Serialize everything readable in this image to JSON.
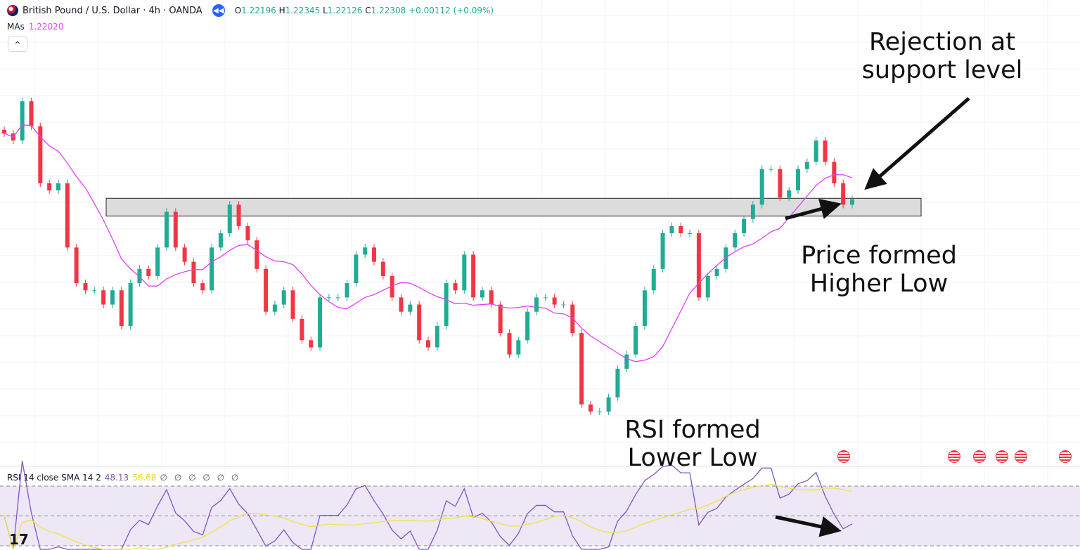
{
  "header": {
    "symbol": "British Pound / U.S. Dollar · 4h · OANDA",
    "open_label": "O",
    "open": "1.22196",
    "high_label": "H",
    "high": "1.22345",
    "low_label": "L",
    "low": "1.22126",
    "close_label": "C",
    "close": "1.22308",
    "change": "+0.00112 (+0.09%)",
    "ma_label": "MAs",
    "ma_value": "1.22020",
    "collapse_icon": "chevron-up-icon"
  },
  "rsi_legend": {
    "title": "RSI 14 close SMA 14 2",
    "rsi_value": "48.13",
    "sma_value": "56.68",
    "empty_values": "∅ ∅ ∅ ∅ ∅ ∅"
  },
  "annotations": {
    "rejection": "Rejection at support level",
    "price_hl_1": "Price formed",
    "price_hl_2": "Higher Low",
    "rsi_ll_1": "RSI formed",
    "rsi_ll_2": "Lower Low"
  },
  "colors": {
    "up": "#22ab94",
    "down": "#f23645",
    "ma": "#e040fb",
    "rsi": "#7e57c2",
    "rsi_sma": "#f0e442",
    "rsi_band": "#ede7f6",
    "zone": "#dcdcdc"
  },
  "chart_data": {
    "type": "candlestick",
    "ylim": [
      1.186,
      1.251
    ],
    "closes": [
      1.2323,
      1.2313,
      1.2368,
      1.2333,
      1.2253,
      1.2243,
      1.2253,
      1.2163,
      1.2113,
      1.2103,
      1.2103,
      1.2083,
      1.2103,
      1.2053,
      1.2113,
      1.2133,
      1.2123,
      1.2163,
      1.2213,
      1.2163,
      1.2143,
      1.2113,
      1.2103,
      1.2163,
      1.2183,
      1.2223,
      1.2193,
      1.2173,
      1.2133,
      1.2073,
      1.2083,
      1.2103,
      1.2063,
      1.2033,
      1.2023,
      1.2093,
      1.2093,
      1.2093,
      1.2113,
      1.2153,
      1.2163,
      1.2143,
      1.2123,
      1.2093,
      1.2073,
      1.2083,
      1.2033,
      1.2023,
      1.2053,
      1.2113,
      1.2103,
      1.2153,
      1.2093,
      1.2103,
      1.2083,
      1.2043,
      1.2013,
      1.2033,
      1.2073,
      1.2093,
      1.2093,
      1.2083,
      1.2083,
      1.2043,
      1.1943,
      1.1933,
      1.1933,
      1.1953,
      1.1993,
      1.2013,
      1.2053,
      1.2103,
      1.2133,
      1.2183,
      1.2193,
      1.2183,
      1.2183,
      1.2093,
      1.2123,
      1.2133,
      1.2163,
      1.2183,
      1.2203,
      1.2223,
      1.2273,
      1.2273,
      1.2233,
      1.2243,
      1.2273,
      1.2283,
      1.2313,
      1.2283,
      1.2253,
      1.2223,
      1.22308
    ],
    "support_zone": [
      1.2207,
      1.2232
    ],
    "rsi": {
      "period": 14,
      "levels": [
        70,
        50,
        30
      ],
      "ylim": [
        20,
        80
      ]
    }
  }
}
